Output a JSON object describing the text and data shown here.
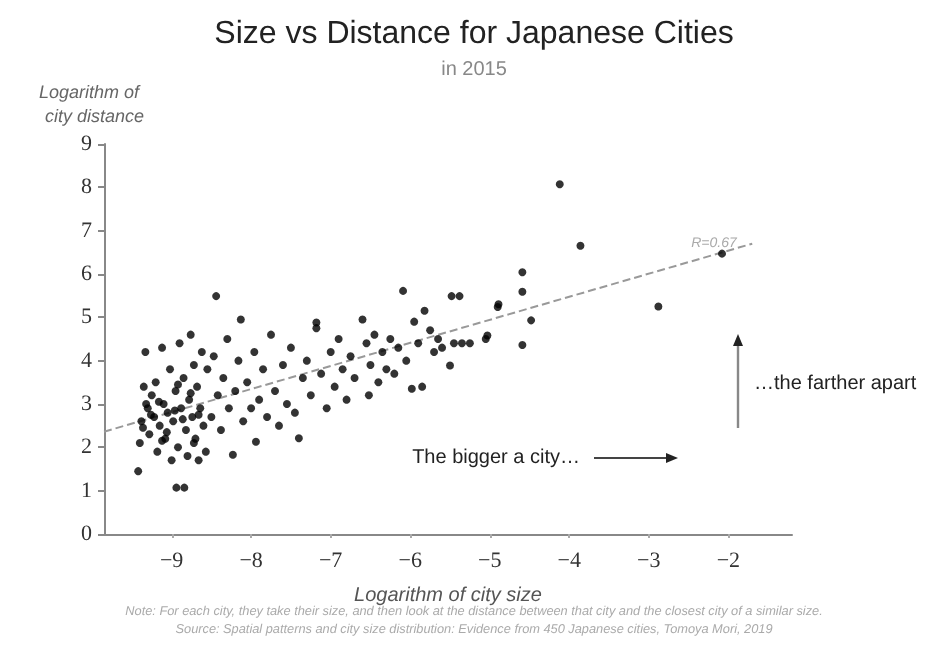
{
  "chart_data": {
    "type": "scatter",
    "title": "Size vs Distance for Japanese Cities",
    "subtitle": "in 2015",
    "xlabel": "Logarithm of city size",
    "ylabel": "Logarithm of city distance",
    "xlim": [
      -9.85,
      -1.2
    ],
    "xticks": [
      -9,
      -8,
      -7,
      -6,
      -5,
      -4,
      -3,
      -2
    ],
    "ylim": [
      0,
      9
    ],
    "yticks": [
      0,
      1,
      2,
      3,
      4,
      5,
      6,
      7,
      8,
      9
    ],
    "grid": false,
    "series": [
      {
        "color": "#000000",
        "marker": "circle",
        "x": [
          -9.42,
          -9.4,
          -9.38,
          -9.35,
          -9.33,
          -9.3,
          -9.28,
          -9.25,
          -9.22,
          -9.2,
          -9.18,
          -9.15,
          -9.12,
          -9.1,
          -9.08,
          -9.05,
          -9.02,
          -9.0,
          -8.98,
          -8.95,
          -8.94,
          -8.92,
          -8.9,
          -8.88,
          -8.85,
          -8.84,
          -8.82,
          -8.8,
          -8.78,
          -8.76,
          -8.74,
          -8.72,
          -8.7,
          -8.68,
          -8.66,
          -8.64,
          -8.62,
          -8.6,
          -9.36,
          -9.26,
          -9.16,
          -9.06,
          -8.96,
          -8.86,
          -8.76,
          -8.66,
          -9.32,
          -9.12,
          -8.92,
          -8.72,
          -8.57,
          -8.55,
          -8.5,
          -8.47,
          -8.44,
          -8.42,
          -8.38,
          -8.35,
          -8.3,
          -8.28,
          -8.23,
          -8.2,
          -8.16,
          -8.13,
          -8.1,
          -8.05,
          -8.0,
          -7.96,
          -7.94,
          -7.9,
          -7.85,
          -7.8,
          -7.75,
          -7.7,
          -7.65,
          -7.6,
          -7.55,
          -7.5,
          -7.45,
          -7.4,
          -7.35,
          -7.3,
          -7.25,
          -7.18,
          -7.18,
          -7.12,
          -7.05,
          -7.0,
          -6.95,
          -6.9,
          -6.85,
          -6.8,
          -6.75,
          -6.7,
          -6.6,
          -6.55,
          -6.52,
          -6.5,
          -6.45,
          -6.4,
          -6.35,
          -6.3,
          -6.25,
          -6.2,
          -6.15,
          -6.09,
          -6.05,
          -5.98,
          -5.95,
          -5.9,
          -5.85,
          -5.82,
          -5.75,
          -5.7,
          -5.65,
          -5.6,
          -5.5,
          -5.48,
          -5.45,
          -5.38,
          -5.35,
          -5.25,
          -5.05,
          -4.9,
          -5.03,
          -4.89,
          -4.59,
          -4.59,
          -4.48,
          -4.59,
          -4.12,
          -3.86,
          -2.88,
          -2.08
        ],
        "values": [
          1.45,
          2.1,
          2.6,
          3.4,
          4.2,
          2.9,
          2.3,
          3.2,
          2.7,
          3.5,
          1.9,
          2.5,
          4.3,
          3.0,
          2.2,
          2.8,
          3.8,
          1.7,
          2.6,
          3.3,
          1.07,
          2.0,
          4.4,
          2.9,
          3.6,
          1.07,
          2.4,
          1.8,
          3.1,
          4.6,
          2.7,
          3.9,
          2.2,
          3.4,
          1.7,
          2.9,
          4.2,
          2.5,
          2.45,
          2.75,
          3.05,
          2.35,
          2.85,
          2.65,
          3.25,
          2.75,
          3.0,
          2.15,
          3.45,
          2.1,
          1.9,
          3.8,
          2.7,
          4.1,
          5.49,
          3.2,
          2.4,
          3.6,
          4.5,
          2.9,
          1.83,
          3.3,
          4.0,
          4.95,
          2.6,
          3.5,
          2.9,
          4.2,
          2.13,
          3.1,
          3.8,
          2.7,
          4.6,
          3.3,
          2.5,
          3.9,
          3.0,
          4.3,
          2.8,
          2.21,
          3.6,
          4.0,
          3.2,
          4.88,
          4.75,
          3.7,
          2.9,
          4.2,
          3.4,
          4.5,
          3.8,
          3.1,
          4.1,
          3.6,
          4.95,
          4.4,
          3.2,
          3.9,
          4.6,
          3.5,
          4.2,
          3.8,
          4.5,
          3.7,
          4.3,
          5.61,
          4.0,
          3.35,
          4.9,
          4.4,
          3.4,
          5.15,
          4.7,
          4.2,
          4.5,
          4.3,
          3.89,
          5.49,
          4.4,
          5.49,
          4.4,
          4.4,
          4.5,
          5.24,
          4.58,
          5.3,
          6.04,
          5.59,
          4.93,
          4.36,
          8.07,
          6.65,
          5.25,
          6.47
        ]
      },
      {
        "type": "line",
        "color": "#999999",
        "marker": "none",
        "line_style": "dashed",
        "x": [
          -9.85,
          -1.7
        ],
        "values": [
          2.36,
          6.7
        ]
      }
    ],
    "annotations": [
      "R=0.67",
      "The bigger a city…",
      "…the farther apart",
      "Note: For each city, they take their size, and then look at the distance between that city and the closest city of a similar size.",
      "Source: Spatial patterns and city size distribution: Evidence from 450 Japanese cities, Tomoya Mori, 2019"
    ]
  }
}
